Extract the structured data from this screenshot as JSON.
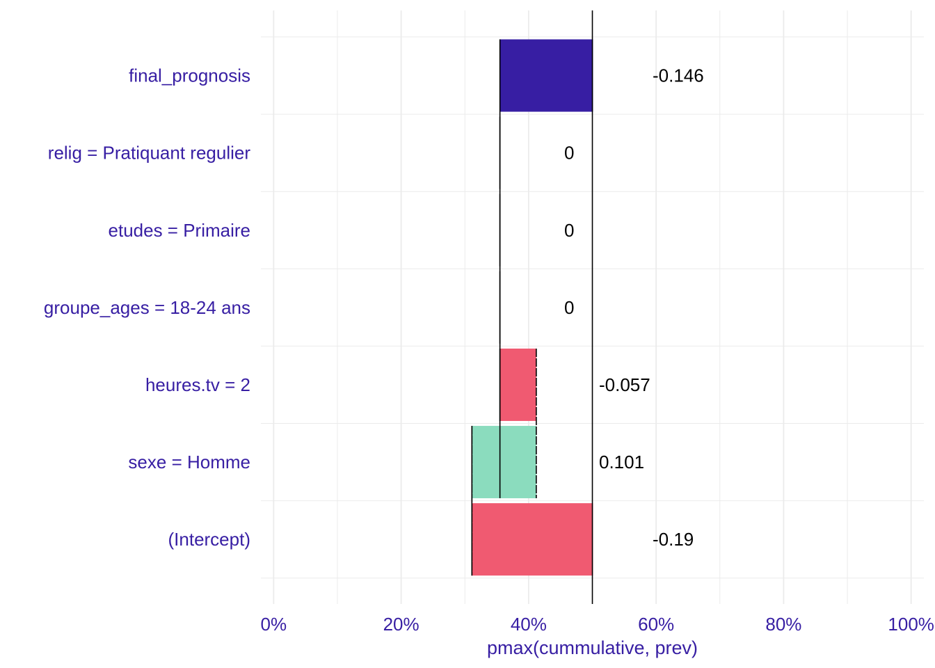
{
  "chart_data": {
    "type": "bar",
    "subtype": "waterfall-break-down",
    "orientation": "horizontal",
    "title": "",
    "xlabel": "pmax(cummulative, prev)",
    "ylabel": "",
    "xlim": [
      -0.02,
      1.02
    ],
    "x_ticks": [
      0,
      0.2,
      0.4,
      0.6,
      0.8,
      1.0
    ],
    "x_tick_labels": [
      "0%",
      "20%",
      "40%",
      "60%",
      "80%",
      "100%"
    ],
    "grid": true,
    "reference_line": 0.5,
    "categories": [
      "final_prognosis",
      "relig = Pratiquant regulier",
      "etudes = Primaire",
      "groupe_ages = 18-24 ans",
      "heures.tv = 2",
      "sexe = Homme",
      "(Intercept)"
    ],
    "bars": [
      {
        "category": "final_prognosis",
        "start": 0.355,
        "end": 0.501,
        "value_label": "-0.146",
        "kind": "final"
      },
      {
        "category": "relig = Pratiquant regulier",
        "start": 0.355,
        "end": 0.355,
        "value_label": "0",
        "kind": "zero"
      },
      {
        "category": "etudes = Primaire",
        "start": 0.355,
        "end": 0.355,
        "value_label": "0",
        "kind": "zero"
      },
      {
        "category": "groupe_ages = 18-24 ans",
        "start": 0.355,
        "end": 0.355,
        "value_label": "0",
        "kind": "zero"
      },
      {
        "category": "heures.tv = 2",
        "start": 0.355,
        "end": 0.412,
        "value_label": "-0.057",
        "kind": "negative"
      },
      {
        "category": "sexe = Homme",
        "start": 0.311,
        "end": 0.412,
        "value_label": "0.101",
        "kind": "positive"
      },
      {
        "category": "(Intercept)",
        "start": 0.311,
        "end": 0.501,
        "value_label": "-0.19",
        "kind": "negative"
      }
    ],
    "colors": {
      "final": "#371ea3",
      "negative": "#f05a71",
      "positive": "#8bdcbe",
      "zero": "#8bdcbe",
      "label_text": "#371ea3",
      "grid": "#ebebeb",
      "line": "#000000"
    }
  }
}
